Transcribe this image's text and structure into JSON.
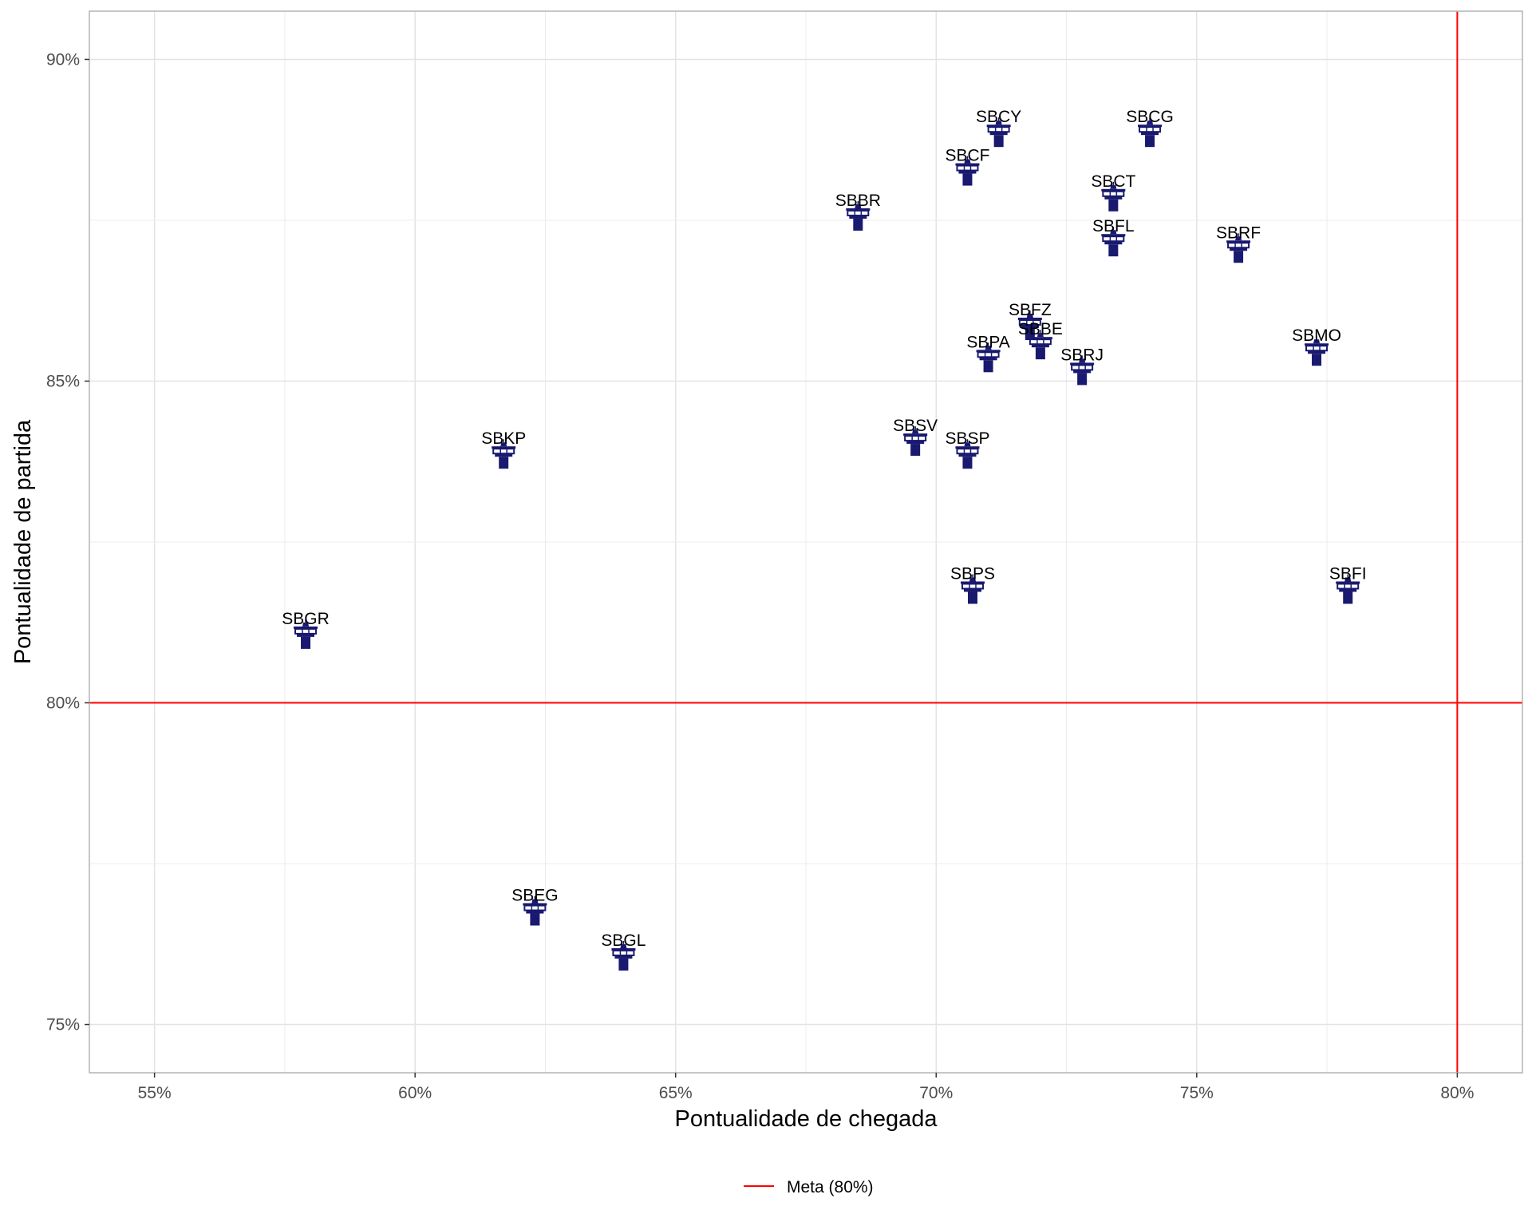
{
  "chart_data": {
    "type": "scatter",
    "title": "",
    "xlabel": "Pontualidade de chegada",
    "ylabel": "Pontualidade de partida",
    "xlim": [
      53.75,
      81.25
    ],
    "ylim": [
      74.25,
      90.75
    ],
    "x_ticks": [
      {
        "value": 55,
        "label": "55%"
      },
      {
        "value": 60,
        "label": "60%"
      },
      {
        "value": 65,
        "label": "65%"
      },
      {
        "value": 70,
        "label": "70%"
      },
      {
        "value": 75,
        "label": "75%"
      },
      {
        "value": 80,
        "label": "80%"
      }
    ],
    "y_ticks": [
      {
        "value": 75,
        "label": "75%"
      },
      {
        "value": 80,
        "label": "80%"
      },
      {
        "value": 85,
        "label": "85%"
      },
      {
        "value": 90,
        "label": "90%"
      }
    ],
    "grid": true,
    "marker": "airport-tower-icon",
    "marker_color": "#191970",
    "points": [
      {
        "label": "SBCY",
        "x": 71.2,
        "y": 88.8
      },
      {
        "label": "SBCG",
        "x": 74.1,
        "y": 88.8
      },
      {
        "label": "SBCF",
        "x": 70.6,
        "y": 88.2
      },
      {
        "label": "SBCT",
        "x": 73.4,
        "y": 87.8
      },
      {
        "label": "SBBR",
        "x": 68.5,
        "y": 87.5
      },
      {
        "label": "SBFL",
        "x": 73.4,
        "y": 87.1
      },
      {
        "label": "SBRF",
        "x": 75.8,
        "y": 87.0
      },
      {
        "label": "SBFZ",
        "x": 71.8,
        "y": 85.8
      },
      {
        "label": "SBBE",
        "x": 72.0,
        "y": 85.5
      },
      {
        "label": "SBPA",
        "x": 71.0,
        "y": 85.3
      },
      {
        "label": "SBMO",
        "x": 77.3,
        "y": 85.4
      },
      {
        "label": "SBRJ",
        "x": 72.8,
        "y": 85.1
      },
      {
        "label": "SBSV",
        "x": 69.6,
        "y": 84.0
      },
      {
        "label": "SBSP",
        "x": 70.6,
        "y": 83.8
      },
      {
        "label": "SBKP",
        "x": 61.7,
        "y": 83.8
      },
      {
        "label": "SBPS",
        "x": 70.7,
        "y": 81.7
      },
      {
        "label": "SBFI",
        "x": 77.9,
        "y": 81.7
      },
      {
        "label": "SBGR",
        "x": 57.9,
        "y": 81.0
      },
      {
        "label": "SBEG",
        "x": 62.3,
        "y": 76.7
      },
      {
        "label": "SBGL",
        "x": 64.0,
        "y": 76.0
      }
    ],
    "reference_lines": [
      {
        "orientation": "vertical",
        "value": 80,
        "color": "#ff0000"
      },
      {
        "orientation": "horizontal",
        "value": 80,
        "color": "#ff0000"
      }
    ],
    "legend": {
      "position": "bottom",
      "entries": [
        {
          "label": "Meta (80%)",
          "color": "#ff0000"
        }
      ]
    }
  }
}
